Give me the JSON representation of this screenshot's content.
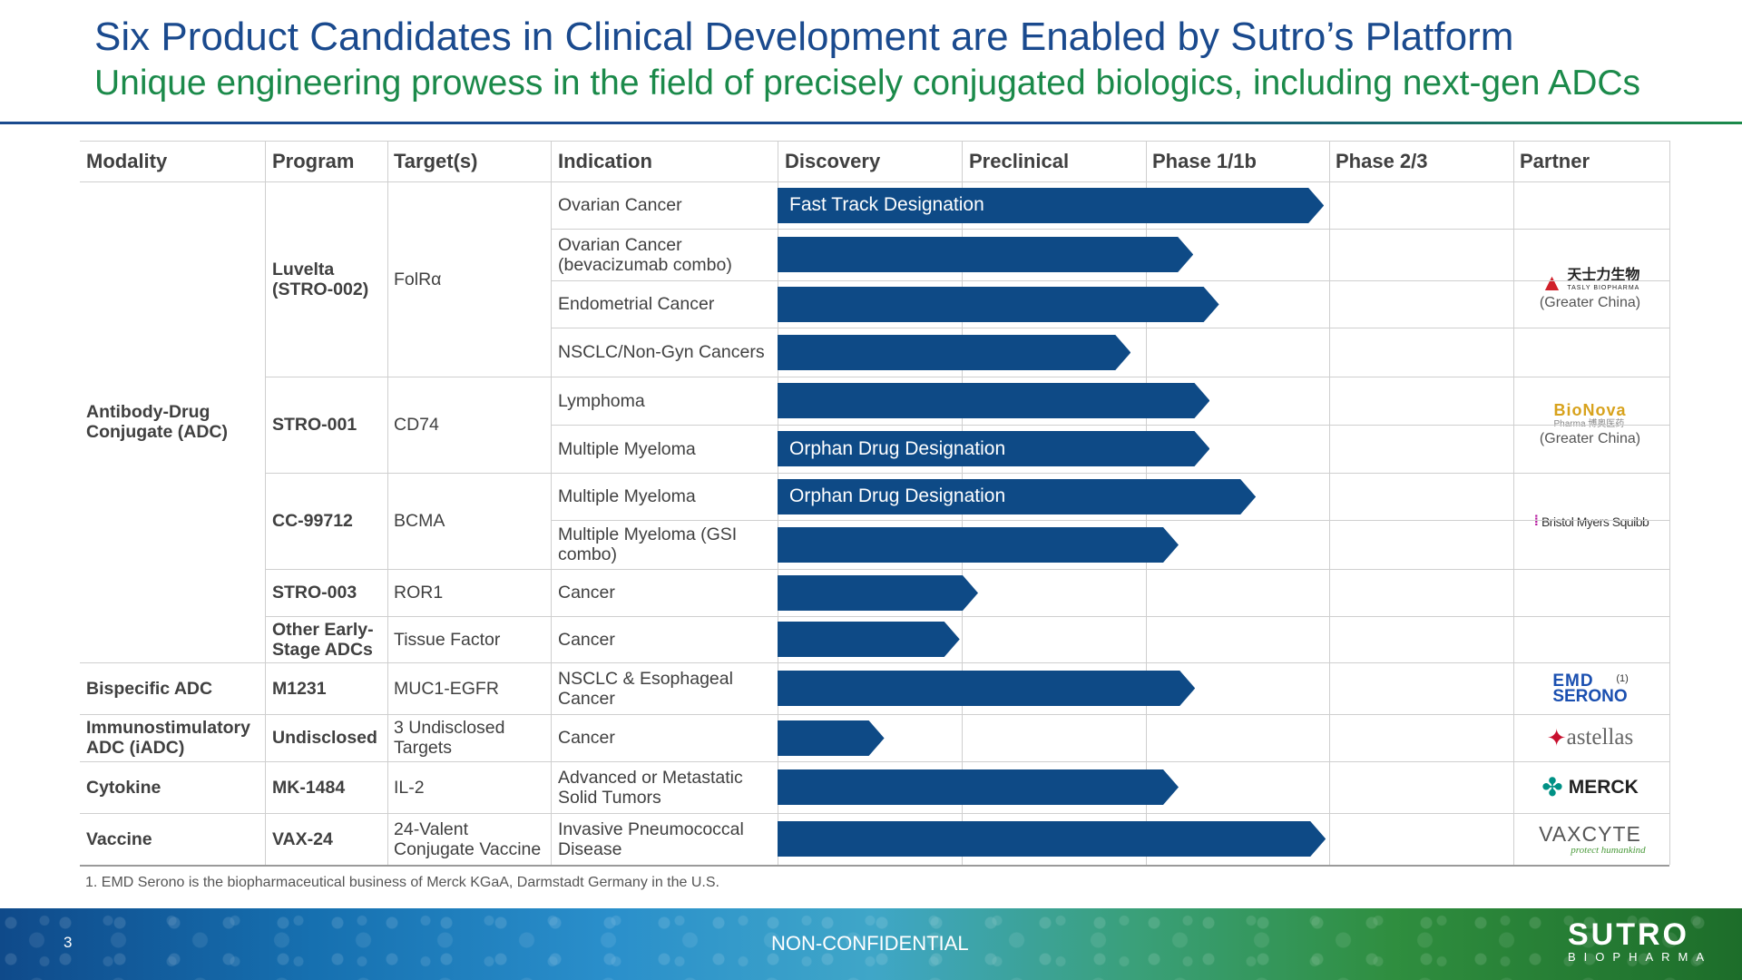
{
  "header": {
    "title": "Six Product Candidates in Clinical Development are Enabled by Sutro’s Platform",
    "subtitle": "Unique engineering prowess in the field of precisely conjugated biologics, including next-gen ADCs"
  },
  "table": {
    "columns": [
      "Modality",
      "Program",
      "Target(s)",
      "Indication",
      "Discovery",
      "Preclinical",
      "Phase 1/1b",
      "Phase 2/3",
      "Partner"
    ],
    "modalities": [
      "Antibody-Drug Conjugate (ADC)",
      "Bispecific ADC",
      "Immunostimulatory ADC (iADC)",
      "Cytokine",
      "Vaccine"
    ],
    "programs": [
      "Luvelta (STRO-002)",
      "STRO-001",
      "CC-99712",
      "STRO-003",
      "Other Early-Stage ADCs",
      "M1231",
      "Undisclosed",
      "MK-1484",
      "VAX-24"
    ],
    "targets": [
      "FolRα",
      "CD74",
      "BCMA",
      "ROR1",
      "Tissue Factor",
      "MUC1-EGFR",
      "3 Undisclosed Targets",
      "IL-2",
      "24-Valent Conjugate Vaccine"
    ],
    "indications": [
      "Ovarian Cancer",
      "Ovarian Cancer (bevacizumab combo)",
      "Endometrial Cancer",
      "NSCLC/Non-Gyn Cancers",
      "Lymphoma",
      "Multiple Myeloma",
      "Multiple Myeloma",
      "Multiple Myeloma (GSI combo)",
      "Cancer",
      "Cancer",
      "NSCLC & Esophageal Cancer",
      "Cancer",
      "Advanced or Metastatic Solid Tumors",
      "Invasive Pneumococcal Disease"
    ],
    "progress": [
      {
        "stage_fraction": 2.97,
        "label": "Fast Track Designation"
      },
      {
        "stage_fraction": 2.26,
        "label": ""
      },
      {
        "stage_fraction": 2.4,
        "label": ""
      },
      {
        "stage_fraction": 1.92,
        "label": ""
      },
      {
        "stage_fraction": 2.35,
        "label": ""
      },
      {
        "stage_fraction": 2.35,
        "label": "Orphan Drug Designation"
      },
      {
        "stage_fraction": 2.6,
        "label": "Orphan Drug Designation"
      },
      {
        "stage_fraction": 2.18,
        "label": ""
      },
      {
        "stage_fraction": 1.09,
        "label": ""
      },
      {
        "stage_fraction": 0.99,
        "label": ""
      },
      {
        "stage_fraction": 2.27,
        "label": ""
      },
      {
        "stage_fraction": 0.58,
        "label": ""
      },
      {
        "stage_fraction": 2.18,
        "label": ""
      },
      {
        "stage_fraction": 2.98,
        "label": ""
      }
    ],
    "partners": {
      "tasly_cn": "天士力生物",
      "tasly_en": "TASLY BIOPHARMA",
      "tasly_region": "(Greater China)",
      "bionova": "BioNova",
      "bionova_sub": "Pharma 博奥医药",
      "bionova_region": "(Greater China)",
      "bms": "Bristol Myers Squibb",
      "emd_top": "EMD",
      "emd_bottom": "SERONO",
      "emd_note": "(1)",
      "astellas": "astellas",
      "merck": "MERCK",
      "vaxcyte": "VAXCYTE",
      "vaxcyte_tag": "protect humankind"
    },
    "bar_color": "#0e4a86"
  },
  "footnote": "1. EMD Serono is the biopharmaceutical business of Merck KGaA, Darmstadt Germany in the U.S.",
  "footer": {
    "page_number": "3",
    "classification": "NON-CONFIDENTIAL",
    "logo_main": "SUTRO",
    "logo_sub": "BIOPHARMA"
  }
}
